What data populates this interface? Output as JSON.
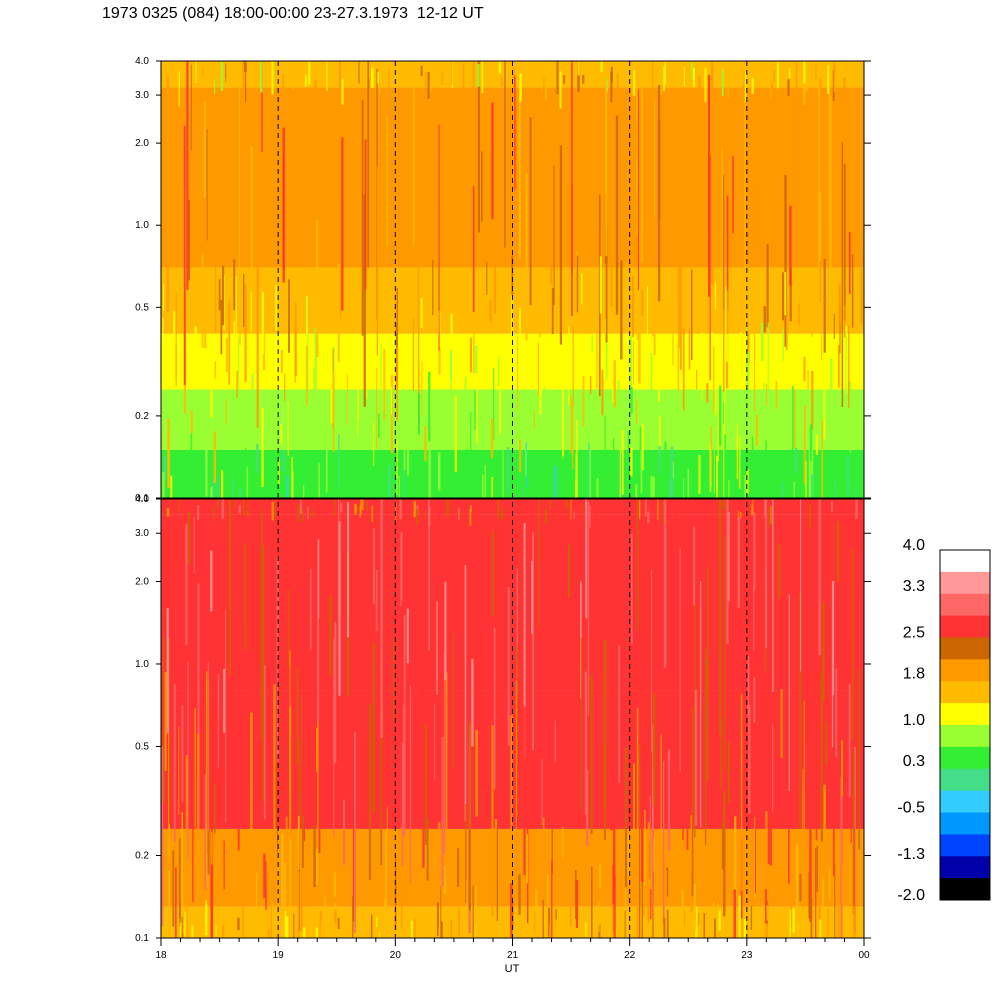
{
  "title": "1973 0325 (084) 18:00-00:00 23-27.3.1973  12-12 UT",
  "chart_data": {
    "type": "heatmap",
    "xlabel": "UT",
    "x_ticks": [
      "18",
      "19",
      "20",
      "21",
      "22",
      "23",
      "00"
    ],
    "x_range_hours": [
      18,
      24
    ],
    "dashed_lines_at_hours": [
      19,
      20,
      21,
      22,
      23
    ],
    "y_scale": "log",
    "y_range": [
      0.1,
      4.0
    ],
    "panels": [
      {
        "name": "upper",
        "y_ticks": [
          "0.1",
          "0.2",
          "0.5",
          "1.0",
          "2.0",
          "3.0",
          "4.0"
        ],
        "dominant_bands": [
          {
            "y_from": 0.1,
            "y_to": 0.15,
            "level": 0.5
          },
          {
            "y_from": 0.15,
            "y_to": 0.25,
            "level": 1.0
          },
          {
            "y_from": 0.25,
            "y_to": 0.4,
            "level": 1.4
          },
          {
            "y_from": 0.4,
            "y_to": 0.7,
            "level": 1.8
          },
          {
            "y_from": 0.7,
            "y_to": 3.2,
            "level": 2.2
          },
          {
            "y_from": 3.2,
            "y_to": 4.0,
            "level": 1.6
          }
        ]
      },
      {
        "name": "lower",
        "y_ticks": [
          "0.1",
          "0.2",
          "0.5",
          "1.0",
          "2.0",
          "3.0",
          "4.0"
        ],
        "dominant_bands": [
          {
            "y_from": 0.1,
            "y_to": 0.13,
            "level": 1.8
          },
          {
            "y_from": 0.13,
            "y_to": 0.25,
            "level": 2.2
          },
          {
            "y_from": 0.25,
            "y_to": 0.8,
            "level": 2.6
          },
          {
            "y_from": 0.8,
            "y_to": 3.5,
            "level": 3.0
          },
          {
            "y_from": 3.5,
            "y_to": 4.0,
            "level": 2.6
          }
        ]
      }
    ],
    "colorbar": {
      "labels": [
        "4.0",
        "3.3",
        "2.5",
        "1.8",
        "1.0",
        "0.3",
        "-0.5",
        "-1.3",
        "-2.0"
      ],
      "range": [
        -2.0,
        4.0
      ],
      "colors": [
        "#ffffff",
        "#ff9999",
        "#ff6666",
        "#ff3333",
        "#cc6600",
        "#ff9900",
        "#ffbb00",
        "#ffff00",
        "#99ff33",
        "#33ee33",
        "#44dd88",
        "#33ccff",
        "#0099ff",
        "#0044ff",
        "#0000aa",
        "#000000"
      ]
    }
  }
}
